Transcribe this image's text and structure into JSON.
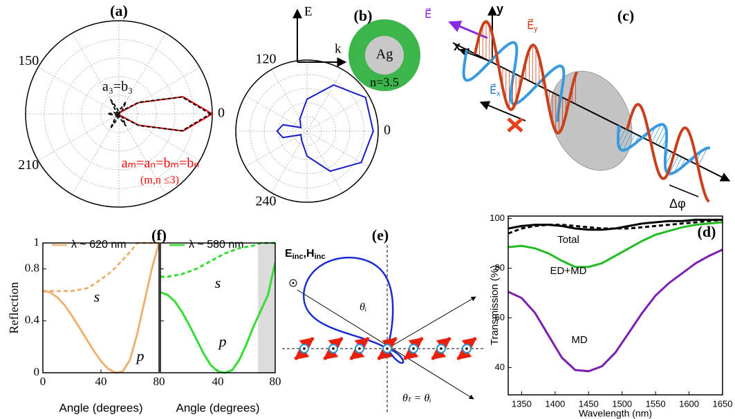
{
  "chart_data": [
    {
      "type": "polar",
      "title": "(a)",
      "theta": [
        0,
        15,
        30,
        45,
        60,
        75,
        90,
        105,
        120,
        135,
        150,
        165,
        180,
        195,
        210,
        225,
        240,
        255,
        270,
        285,
        300,
        315,
        330,
        345,
        360
      ],
      "rlim": [
        0,
        1
      ],
      "rgrid": [
        0.2,
        0.4,
        0.6,
        0.8
      ],
      "thetagrid": [
        0,
        30,
        60,
        90,
        120,
        150,
        180,
        210,
        240,
        270,
        300,
        330
      ],
      "thetaticks": [
        150,
        0,
        210
      ],
      "series": [
        {
          "color": "#ff0000",
          "dashed": false,
          "values": [
            1,
            0.71,
            0.24,
            0.03,
            0,
            0,
            0,
            0,
            0,
            0,
            0,
            0,
            0,
            0,
            0,
            0,
            0,
            0,
            0,
            0,
            0,
            0.03,
            0.24,
            0.71,
            1
          ]
        },
        {
          "color": "#000000",
          "dashed": true,
          "values": [
            0.98,
            0.7,
            0.25,
            0.05,
            0.15,
            0.05,
            0,
            0.05,
            0.18,
            0.05,
            0,
            0.05,
            0.12,
            0.05,
            0,
            0.05,
            0.18,
            0.05,
            0,
            0.05,
            0.15,
            0.05,
            0.25,
            0.7,
            0.98
          ]
        }
      ],
      "annotations": [
        {
          "text": "a₃=b₃",
          "color": "#000000"
        },
        {
          "text": "aₘ=aₙ=bₘ=bₙ",
          "color": "#ff0000"
        },
        {
          "text": "(m,n ≤3)",
          "color": "#ff0000"
        }
      ]
    },
    {
      "type": "polar",
      "title": "(b)",
      "theta": [
        0,
        30,
        60,
        90,
        120,
        150,
        165,
        180,
        195,
        210,
        240,
        270,
        300,
        330,
        360
      ],
      "rlim": [
        0,
        1
      ],
      "rgrid": [
        0.2,
        0.4,
        0.6,
        0.8
      ],
      "thetagrid": [
        0,
        30,
        60,
        90,
        120,
        150,
        180,
        210,
        240,
        270,
        300,
        330
      ],
      "thetaticks": [
        120,
        0,
        240
      ],
      "series": [
        {
          "color": "#1a1acc",
          "dashed": false,
          "values": [
            0.93,
            0.95,
            0.75,
            0.45,
            0.2,
            0.1,
            0.35,
            0.42,
            0.35,
            0.1,
            0.15,
            0.35,
            0.65,
            0.88,
            0.93
          ]
        }
      ],
      "annotations": []
    },
    {
      "type": "line",
      "title": "(d)",
      "xlabel": "Wavelength (nm)",
      "ylabel": "Transmission (%)",
      "x": [
        1330,
        1350,
        1370,
        1390,
        1410,
        1430,
        1450,
        1470,
        1490,
        1510,
        1530,
        1550,
        1570,
        1590,
        1610,
        1630,
        1650
      ],
      "xlim": [
        1330,
        1650
      ],
      "xticks": [
        1350,
        1400,
        1450,
        1500,
        1550,
        1600,
        1650
      ],
      "ylim": [
        29,
        101
      ],
      "yticks": [
        40,
        60,
        80,
        100
      ],
      "series": [
        {
          "color": "#000000",
          "dashed": false,
          "values": [
            96,
            97,
            97.5,
            97.5,
            97,
            96,
            95.5,
            95.5,
            96,
            97,
            98,
            98.5,
            99,
            99,
            99.5,
            99.5,
            99.5
          ]
        },
        {
          "color": "#000000",
          "dashed": true,
          "values": [
            94,
            96,
            97,
            97.5,
            97.5,
            97,
            96.5,
            96,
            96,
            96,
            96.5,
            97,
            97.5,
            98,
            98.5,
            99,
            99.5
          ]
        },
        {
          "color": "#22bb22",
          "dashed": false,
          "values": [
            88.5,
            89,
            88,
            86,
            83,
            80.5,
            80.5,
            82,
            85,
            88,
            91,
            93.5,
            95,
            96.5,
            97.5,
            98,
            98.5
          ]
        },
        {
          "color": "#7a1fb0",
          "dashed": false,
          "values": [
            70.5,
            68,
            62,
            53,
            44,
            39,
            38.5,
            40.5,
            46,
            54,
            62,
            69,
            74,
            78,
            82,
            85,
            87.5
          ]
        }
      ],
      "annotations": [
        {
          "text": "Total",
          "color": "#000000"
        },
        {
          "text": "ED+MD",
          "color": "#000000"
        },
        {
          "text": "MD",
          "color": "#000000"
        }
      ]
    },
    {
      "type": "line",
      "title": "(f)",
      "xlabel": "Angle (degrees)",
      "ylabel": "Reflection",
      "x": [
        0,
        5,
        10,
        15,
        20,
        25,
        30,
        35,
        40,
        45,
        50,
        55,
        60,
        65,
        70,
        75,
        80
      ],
      "xlim": [
        0,
        80
      ],
      "xticks": [
        0,
        40,
        80
      ],
      "ylim": [
        0,
        1
      ],
      "yticks": [
        0,
        0.4,
        0.8,
        1
      ],
      "series": [
        {
          "name": "λ ~ 620 nm",
          "color": "#f0b070",
          "dashed": false,
          "values": [
            0.63,
            0.62,
            0.58,
            0.52,
            0.44,
            0.35,
            0.26,
            0.17,
            0.09,
            0.03,
            0,
            0.01,
            0.1,
            0.3,
            0.55,
            0.8,
            1
          ]
        },
        {
          "color": "#f0b070",
          "dashed": true,
          "values": [
            0.63,
            0.63,
            0.63,
            0.63,
            0.63,
            0.64,
            0.65,
            0.68,
            0.72,
            0.76,
            0.81,
            0.87,
            0.93,
            1,
            1,
            1,
            1
          ]
        }
      ],
      "annotations": [
        {
          "text": "s",
          "color": "#000000"
        },
        {
          "text": "p",
          "color": "#000000"
        }
      ]
    },
    {
      "type": "line",
      "xlabel": "Angle (degrees)",
      "x": [
        0,
        5,
        10,
        15,
        20,
        25,
        30,
        35,
        40,
        45,
        50,
        55,
        60,
        65,
        70,
        75,
        80
      ],
      "xlim": [
        0,
        80
      ],
      "xticks": [
        40,
        80
      ],
      "ylim": [
        0,
        1
      ],
      "yticks": [
        0,
        0.4,
        0.8,
        1
      ],
      "shade": [
        68,
        80
      ],
      "series": [
        {
          "name": "λ ~ 580 nm",
          "color": "#33dd33",
          "dashed": false,
          "values": [
            0.62,
            0.6,
            0.55,
            0.47,
            0.37,
            0.26,
            0.15,
            0.06,
            0.01,
            0,
            0.02,
            0.1,
            0.22,
            0.36,
            0.48,
            0.6,
            0.85
          ]
        },
        {
          "color": "#33dd33",
          "dashed": true,
          "values": [
            0.74,
            0.74,
            0.75,
            0.76,
            0.78,
            0.8,
            0.83,
            0.86,
            0.89,
            0.92,
            0.94,
            0.96,
            0.97,
            0.98,
            1,
            1,
            1
          ]
        }
      ],
      "annotations": [
        {
          "text": "s",
          "color": "#000000"
        },
        {
          "text": "p",
          "color": "#000000"
        }
      ]
    }
  ],
  "diagrams": {
    "b": {
      "e": "E",
      "k": "k",
      "core": "Ag",
      "shell": "n=3.5"
    },
    "c": {
      "title": "(c)",
      "y": "y",
      "x": "x",
      "e": "E⃗",
      "ey": "E⃗",
      "ey_sub": "y",
      "ex": "E⃗",
      "ex_sub": "x",
      "phase": "Δφ"
    },
    "e": {
      "title": "(e)",
      "field": [
        "E",
        "inc",
        ",H",
        "inc"
      ],
      "incident": "θᵢ",
      "transmitted": "θₜ = θᵢ"
    }
  }
}
